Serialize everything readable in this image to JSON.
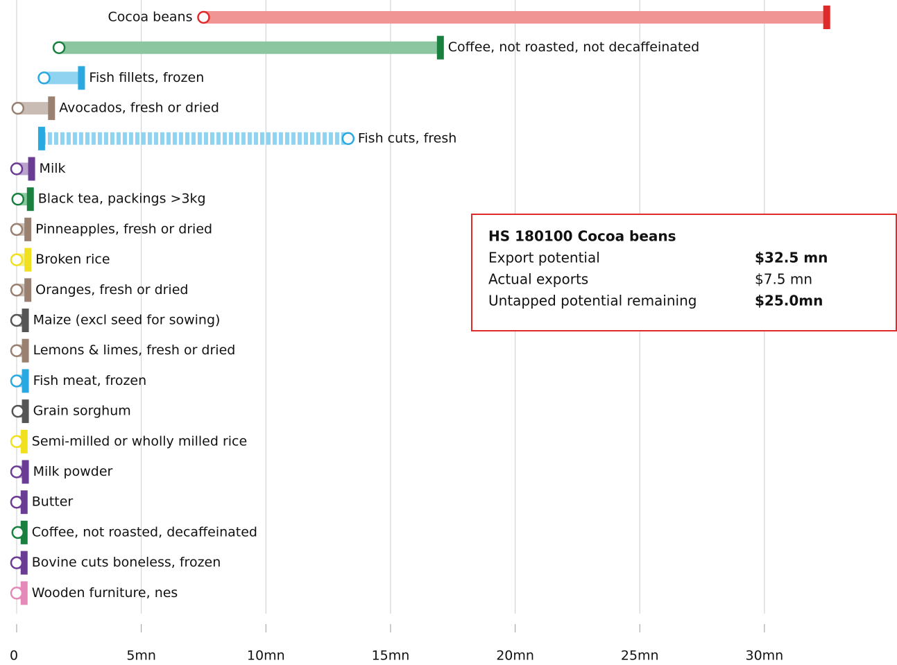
{
  "chart_data": {
    "type": "dumbbell",
    "categories": [
      "Cocoa beans",
      "Coffee, not roasted, not decaffeinated",
      "Fish fillets, frozen",
      "Avocados, fresh or dried",
      "Fish cuts, fresh",
      "Milk",
      "Black tea, packings >3kg",
      "Pinneapples, fresh or dried",
      "Broken rice",
      "Oranges, fresh or dried",
      "Maize (excl seed for sowing)",
      "Lemons & limes, fresh or dried",
      "Fish meat, frozen",
      "Grain sorghum",
      "Semi-milled or wholly milled rice",
      "Milk powder",
      "Butter",
      "Coffee, not roasted, decaffeinated",
      "Bovine cuts boneless, frozen",
      "Wooden furniture, nes"
    ],
    "potential": [
      32.5,
      17.0,
      2.6,
      1.4,
      1.0,
      0.6,
      0.55,
      0.45,
      0.45,
      0.45,
      0.35,
      0.35,
      0.35,
      0.35,
      0.3,
      0.35,
      0.3,
      0.3,
      0.3,
      0.3
    ],
    "actual": [
      7.5,
      1.7,
      1.1,
      0.05,
      13.3,
      0,
      0.05,
      0,
      0,
      0,
      0,
      0,
      0,
      0.05,
      0,
      0,
      0,
      0.05,
      0,
      0
    ],
    "colors": [
      "#e02a2a",
      "#1a8040",
      "#2aa8e0",
      "#9a8070",
      "#2aa8e0",
      "#6a3c94",
      "#1a8040",
      "#9a8070",
      "#f0e020",
      "#9a8070",
      "#555555",
      "#9a8070",
      "#2aa8e0",
      "#555555",
      "#f0e020",
      "#6a3c94",
      "#6a3c94",
      "#1a8040",
      "#6a3c94",
      "#e58ab8"
    ],
    "light_colors": [
      "#f09494",
      "#8cc6a0",
      "#8fd3f0",
      "#c9bcb4",
      "#8fd3f0",
      "#b9a3cc",
      "#8cc6a0",
      "#c9bcb4",
      "#f5ee80",
      "#c9bcb4",
      "#999999",
      "#c9bcb4",
      "#8fd3f0",
      "#999999",
      "#f5ee80",
      "#b9a3cc",
      "#b9a3cc",
      "#8cc6a0",
      "#b9a3cc",
      "#f0b8d4"
    ],
    "xlim": [
      0,
      35.3
    ],
    "xticks": [
      0,
      {
        "value": 5,
        "label": "5mn"
      },
      {
        "value": 10,
        "label": "10mn"
      },
      {
        "value": 15,
        "label": "15mn"
      },
      {
        "value": 20,
        "label": "20mn"
      },
      {
        "value": 25,
        "label": "25mn"
      },
      {
        "value": 30,
        "label": "30mn"
      }
    ],
    "grid": true,
    "tooltip": {
      "title": "HS 180100 Cocoa beans",
      "rows": [
        [
          "Export potential",
          "$32.5 mn"
        ],
        [
          "Actual exports",
          "$7.5 mn"
        ],
        [
          "Untapped potential remaining",
          "$25.0mn"
        ]
      ],
      "bold": [
        true,
        false,
        true
      ]
    }
  }
}
